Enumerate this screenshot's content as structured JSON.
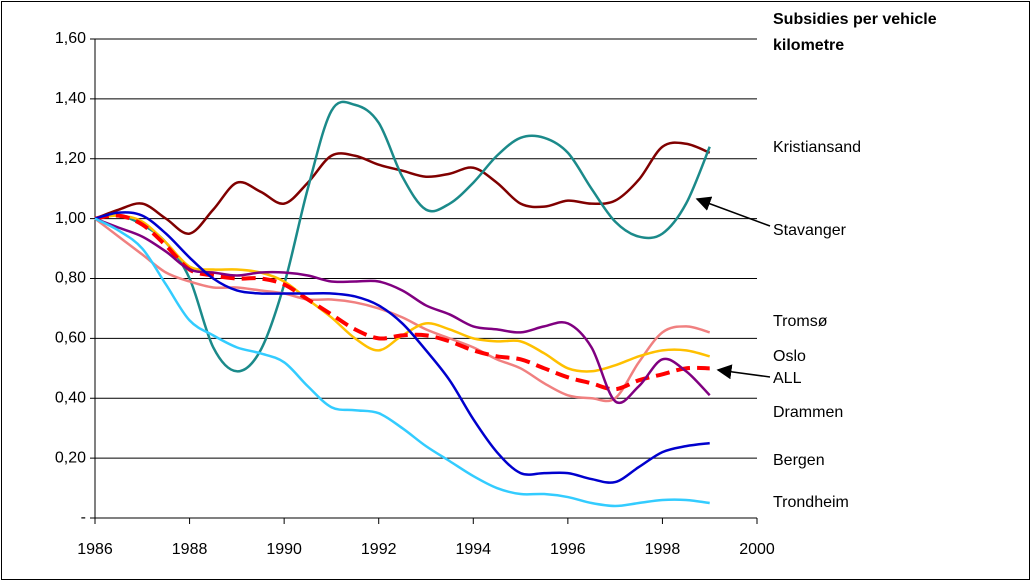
{
  "chart_data": {
    "type": "line",
    "title": "Subsidies per vehicle kilometre",
    "x": [
      1986,
      1986.5,
      1987,
      1987.5,
      1988,
      1988.5,
      1989,
      1989.5,
      1990,
      1990.5,
      1991,
      1991.5,
      1992,
      1992.5,
      1993,
      1993.5,
      1994,
      1994.5,
      1995,
      1995.5,
      1996,
      1996.5,
      1997,
      1997.5,
      1998,
      1998.5,
      1999
    ],
    "xlim": [
      1986,
      2000
    ],
    "xticks": [
      1986,
      1988,
      1990,
      1992,
      1994,
      1996,
      1998,
      2000
    ],
    "ylim": [
      0,
      1.6
    ],
    "yticks": [
      {
        "value": 0,
        "label": "-"
      },
      {
        "value": 0.2,
        "label": "0,20"
      },
      {
        "value": 0.4,
        "label": "0,40"
      },
      {
        "value": 0.6,
        "label": "0,60"
      },
      {
        "value": 0.8,
        "label": "0,80"
      },
      {
        "value": 1.0,
        "label": "1,00"
      },
      {
        "value": 1.2,
        "label": "1,20"
      },
      {
        "value": 1.4,
        "label": "1,40"
      },
      {
        "value": 1.6,
        "label": "1,60"
      }
    ],
    "grid": true,
    "series": [
      {
        "name": "Kristiansand",
        "color": "#800000",
        "values": [
          1.0,
          1.03,
          1.05,
          1.0,
          0.95,
          1.03,
          1.12,
          1.09,
          1.05,
          1.12,
          1.21,
          1.21,
          1.18,
          1.16,
          1.14,
          1.15,
          1.17,
          1.12,
          1.05,
          1.04,
          1.06,
          1.05,
          1.06,
          1.13,
          1.24,
          1.25,
          1.22
        ]
      },
      {
        "name": "Stavanger",
        "color": "#1b8a8a",
        "values": [
          1.0,
          1.01,
          0.98,
          0.92,
          0.8,
          0.57,
          0.49,
          0.56,
          0.78,
          1.1,
          1.36,
          1.38,
          1.32,
          1.14,
          1.03,
          1.05,
          1.12,
          1.21,
          1.27,
          1.27,
          1.22,
          1.1,
          0.99,
          0.94,
          0.95,
          1.05,
          1.24
        ]
      },
      {
        "name": "Tromsø",
        "color": "#f08080",
        "values": [
          1.0,
          0.94,
          0.88,
          0.82,
          0.79,
          0.77,
          0.77,
          0.76,
          0.75,
          0.73,
          0.73,
          0.72,
          0.7,
          0.67,
          0.63,
          0.6,
          0.57,
          0.53,
          0.5,
          0.45,
          0.41,
          0.4,
          0.4,
          0.52,
          0.62,
          0.64,
          0.62
        ]
      },
      {
        "name": "Oslo",
        "color": "#ffc000",
        "values": [
          1.0,
          1.01,
          0.99,
          0.92,
          0.84,
          0.83,
          0.83,
          0.82,
          0.79,
          0.73,
          0.67,
          0.6,
          0.56,
          0.61,
          0.65,
          0.63,
          0.6,
          0.59,
          0.59,
          0.55,
          0.5,
          0.49,
          0.51,
          0.54,
          0.56,
          0.56,
          0.54
        ]
      },
      {
        "name": "ALL",
        "color": "#ff0000",
        "dashed": true,
        "values": [
          1.0,
          1.01,
          0.98,
          0.91,
          0.83,
          0.81,
          0.8,
          0.8,
          0.78,
          0.73,
          0.68,
          0.63,
          0.6,
          0.61,
          0.61,
          0.59,
          0.56,
          0.54,
          0.53,
          0.5,
          0.47,
          0.45,
          0.43,
          0.46,
          0.48,
          0.5,
          0.5
        ]
      },
      {
        "name": "Drammen",
        "color": "#800080",
        "values": [
          1.0,
          0.97,
          0.94,
          0.89,
          0.83,
          0.82,
          0.81,
          0.82,
          0.82,
          0.81,
          0.79,
          0.79,
          0.79,
          0.76,
          0.71,
          0.68,
          0.64,
          0.63,
          0.62,
          0.64,
          0.65,
          0.57,
          0.39,
          0.44,
          0.53,
          0.49,
          0.41
        ]
      },
      {
        "name": "Bergen",
        "color": "#0000cd",
        "values": [
          1.0,
          1.02,
          1.01,
          0.95,
          0.87,
          0.8,
          0.76,
          0.75,
          0.75,
          0.75,
          0.75,
          0.74,
          0.71,
          0.65,
          0.56,
          0.46,
          0.33,
          0.22,
          0.15,
          0.15,
          0.15,
          0.13,
          0.12,
          0.17,
          0.22,
          0.24,
          0.25
        ]
      },
      {
        "name": "Trondheim",
        "color": "#33ccff",
        "values": [
          1.0,
          0.96,
          0.9,
          0.78,
          0.66,
          0.61,
          0.57,
          0.55,
          0.52,
          0.44,
          0.37,
          0.36,
          0.35,
          0.3,
          0.24,
          0.19,
          0.14,
          0.1,
          0.08,
          0.08,
          0.07,
          0.05,
          0.04,
          0.05,
          0.06,
          0.06,
          0.05
        ]
      }
    ]
  }
}
